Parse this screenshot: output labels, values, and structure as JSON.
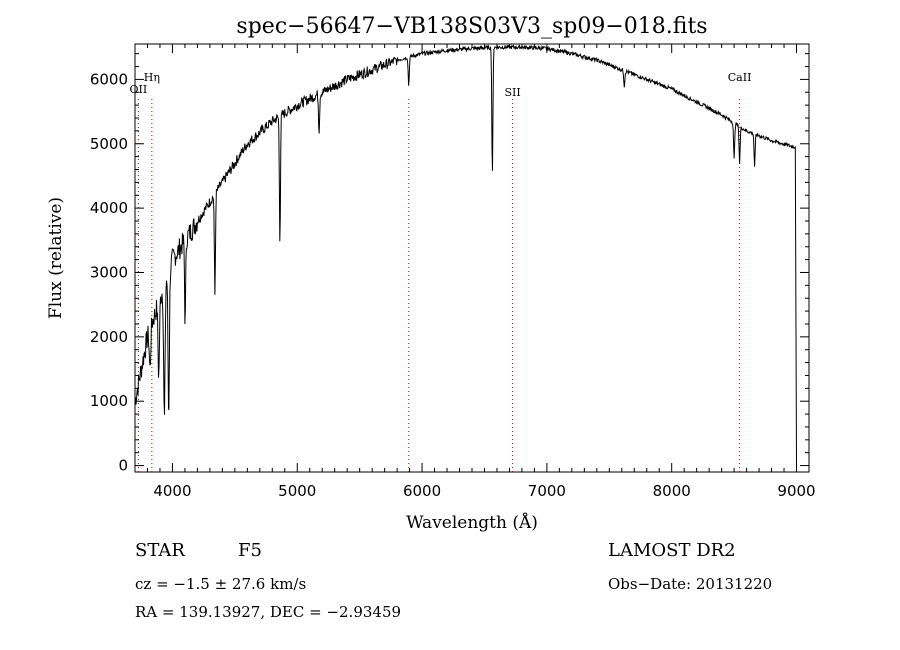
{
  "chart_data": {
    "type": "line",
    "title": "spec−56647−VB138S03V3_sp09−018.fits",
    "xlabel": "Wavelength (Å)",
    "ylabel": "Flux (relative)",
    "xlim": [
      3700,
      9100
    ],
    "ylim": [
      -100,
      6550
    ],
    "x_ticks": [
      4000,
      5000,
      6000,
      7000,
      8000,
      9000
    ],
    "x_tick_labels": [
      "4000",
      "5000",
      "6000",
      "7000",
      "8000",
      "9000"
    ],
    "y_ticks": [
      0,
      1000,
      2000,
      3000,
      4000,
      5000,
      6000
    ],
    "y_tick_labels": [
      "0",
      "1000",
      "2000",
      "3000",
      "4000",
      "5000",
      "6000"
    ],
    "grid": false,
    "line_color": "#000000",
    "marker_color": "#cc0000",
    "continuum": {
      "x": [
        3700,
        3800,
        3900,
        4000,
        4200,
        4400,
        4600,
        4800,
        5000,
        5200,
        5400,
        5600,
        5800,
        6000,
        6200,
        6400,
        6600,
        6800,
        7000,
        7200,
        7400,
        7600,
        7800,
        8000,
        8200,
        8400,
        8600,
        8800,
        8980,
        9000
      ],
      "y": [
        1000,
        2000,
        2600,
        3200,
        3800,
        4400,
        5000,
        5350,
        5600,
        5800,
        6000,
        6150,
        6300,
        6400,
        6450,
        6480,
        6500,
        6500,
        6480,
        6400,
        6300,
        6150,
        6000,
        5850,
        5650,
        5450,
        5200,
        5050,
        4950,
        0
      ]
    },
    "absorption_lines": [
      {
        "x": 3820,
        "y": 1500
      },
      {
        "x": 3890,
        "y": 1400
      },
      {
        "x": 3935,
        "y": 700
      },
      {
        "x": 3970,
        "y": 800
      },
      {
        "x": 4102,
        "y": 2200
      },
      {
        "x": 4340,
        "y": 2650
      },
      {
        "x": 4861,
        "y": 3500
      },
      {
        "x": 5175,
        "y": 5200
      },
      {
        "x": 5893,
        "y": 5900
      },
      {
        "x": 6563,
        "y": 4500
      },
      {
        "x": 7620,
        "y": 5900
      },
      {
        "x": 8500,
        "y": 4750
      },
      {
        "x": 8544,
        "y": 4700
      },
      {
        "x": 8664,
        "y": 4650
      }
    ],
    "line_markers": [
      {
        "x": 3727,
        "label": "OII"
      },
      {
        "x": 3835,
        "label": "Hη"
      },
      {
        "x": 5893,
        "label": ""
      },
      {
        "x": 6725,
        "label": "SII"
      },
      {
        "x": 8544,
        "label": "CaII"
      }
    ]
  },
  "info": {
    "object_type": "STAR",
    "subclass": "F5",
    "survey": "LAMOST DR2",
    "velocity": "cz = −1.5 ± 27.6 km/s",
    "obs_date": "Obs−Date: 20131220",
    "coordinates": "RA = 139.13927, DEC =  −2.93459"
  }
}
